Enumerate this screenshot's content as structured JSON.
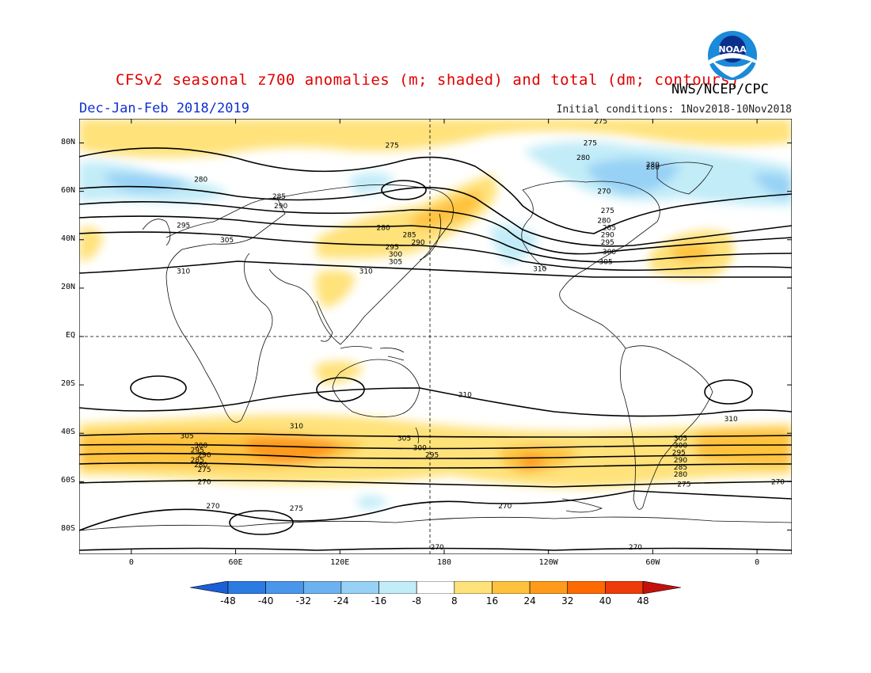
{
  "header": {
    "title": "CFSv2 seasonal z700 anomalies (m; shaded) and total (dm; contours)",
    "agency": "NWS/NCEP/CPC",
    "period": "Dec-Jan-Feb 2018/2019",
    "initial_conditions": "Initial conditions: 1Nov2018-10Nov2018"
  },
  "logo": {
    "text": "NOAA",
    "icon": "noaa-logo"
  },
  "axes": {
    "lat_ticks": [
      "80N",
      "60N",
      "40N",
      "20N",
      "EQ",
      "20S",
      "40S",
      "60S",
      "80S"
    ],
    "lat_values": [
      80,
      60,
      40,
      20,
      0,
      -20,
      -40,
      -60,
      -80
    ],
    "lon_ticks": [
      "0",
      "60E",
      "120E",
      "180",
      "120W",
      "60W",
      "0"
    ],
    "lon_values": [
      0,
      60,
      120,
      180,
      240,
      300,
      360
    ],
    "lat_range": [
      -90,
      90
    ],
    "lon_range": [
      -30,
      380
    ]
  },
  "colorbar": {
    "labels": [
      "-48",
      "-40",
      "-32",
      "-24",
      "-16",
      "-8",
      "8",
      "16",
      "24",
      "32",
      "40",
      "48"
    ],
    "colors": [
      "#1a5fd6",
      "#2b7be3",
      "#4a96ea",
      "#6cb2f0",
      "#97d1f5",
      "#c2ecf8",
      "#ffffff",
      "#ffe27a",
      "#ffc23d",
      "#ff9a1a",
      "#ff6a00",
      "#ee3b0a",
      "#c4100a"
    ]
  },
  "chart_data": {
    "type": "heatmap",
    "title": "CFSv2 seasonal z700 anomalies (m; shaded) and total (dm; contours)",
    "xlabel": "",
    "ylabel": "",
    "contour_labels": [
      {
        "lon": 270,
        "lat": 89,
        "text": "275"
      },
      {
        "lon": 300,
        "lat": 71,
        "text": "280"
      },
      {
        "lon": 150,
        "lat": 79,
        "text": "275"
      },
      {
        "lon": 300,
        "lat": 70,
        "text": "280"
      },
      {
        "lon": 260,
        "lat": 74,
        "text": "280"
      },
      {
        "lon": 264,
        "lat": 80,
        "text": "275"
      },
      {
        "lon": 40,
        "lat": 65,
        "text": "280"
      },
      {
        "lon": 85,
        "lat": 58,
        "text": "285"
      },
      {
        "lon": 86,
        "lat": 54,
        "text": "290"
      },
      {
        "lon": 30,
        "lat": 46,
        "text": "295"
      },
      {
        "lon": 55,
        "lat": 40,
        "text": "305"
      },
      {
        "lon": 30,
        "lat": 27,
        "text": "310"
      },
      {
        "lon": 145,
        "lat": 45,
        "text": "280"
      },
      {
        "lon": 160,
        "lat": 42,
        "text": "285"
      },
      {
        "lon": 165,
        "lat": 39,
        "text": "290"
      },
      {
        "lon": 150,
        "lat": 37,
        "text": "295"
      },
      {
        "lon": 152,
        "lat": 34,
        "text": "300"
      },
      {
        "lon": 152,
        "lat": 31,
        "text": "305"
      },
      {
        "lon": 135,
        "lat": 27,
        "text": "310"
      },
      {
        "lon": 272,
        "lat": 60,
        "text": "270"
      },
      {
        "lon": 274,
        "lat": 52,
        "text": "275"
      },
      {
        "lon": 272,
        "lat": 48,
        "text": "280"
      },
      {
        "lon": 275,
        "lat": 45,
        "text": "285"
      },
      {
        "lon": 274,
        "lat": 42,
        "text": "290"
      },
      {
        "lon": 274,
        "lat": 39,
        "text": "295"
      },
      {
        "lon": 275,
        "lat": 35,
        "text": "300"
      },
      {
        "lon": 273,
        "lat": 31,
        "text": "305"
      },
      {
        "lon": 235,
        "lat": 28,
        "text": "310"
      },
      {
        "lon": 192,
        "lat": -24,
        "text": "310"
      },
      {
        "lon": 95,
        "lat": -37,
        "text": "310"
      },
      {
        "lon": 345,
        "lat": -34,
        "text": "310"
      },
      {
        "lon": 32,
        "lat": -41,
        "text": "305"
      },
      {
        "lon": 40,
        "lat": -45,
        "text": "300"
      },
      {
        "lon": 38,
        "lat": -47,
        "text": "295"
      },
      {
        "lon": 42,
        "lat": -49,
        "text": "290"
      },
      {
        "lon": 38,
        "lat": -51,
        "text": "285"
      },
      {
        "lon": 40,
        "lat": -53,
        "text": "280"
      },
      {
        "lon": 42,
        "lat": -55,
        "text": "275"
      },
      {
        "lon": 42,
        "lat": -60,
        "text": "270"
      },
      {
        "lon": 157,
        "lat": -42,
        "text": "305"
      },
      {
        "lon": 166,
        "lat": -46,
        "text": "300"
      },
      {
        "lon": 173,
        "lat": -49,
        "text": "295"
      },
      {
        "lon": 316,
        "lat": -42,
        "text": "305"
      },
      {
        "lon": 316,
        "lat": -45,
        "text": "300"
      },
      {
        "lon": 315,
        "lat": -48,
        "text": "295"
      },
      {
        "lon": 316,
        "lat": -51,
        "text": "290"
      },
      {
        "lon": 316,
        "lat": -54,
        "text": "285"
      },
      {
        "lon": 316,
        "lat": -57,
        "text": "280"
      },
      {
        "lon": 318,
        "lat": -61,
        "text": "275"
      },
      {
        "lon": 372,
        "lat": -60,
        "text": "270"
      },
      {
        "lon": 215,
        "lat": -70,
        "text": "270"
      },
      {
        "lon": 95,
        "lat": -71,
        "text": "275"
      },
      {
        "lon": 47,
        "lat": -70,
        "text": "270"
      },
      {
        "lon": 176,
        "lat": -87,
        "text": "270"
      },
      {
        "lon": 290,
        "lat": -87,
        "text": "270"
      }
    ],
    "shaded_anomalies": [
      {
        "lon": 120,
        "lat": -50,
        "value": 32
      },
      {
        "lon": 240,
        "lat": -54,
        "value": 32
      },
      {
        "lon": 205,
        "lat": 53,
        "value": 24
      },
      {
        "lon": 335,
        "lat": 37,
        "value": 24
      },
      {
        "lon": 40,
        "lat": 62,
        "value": -16
      },
      {
        "lon": 310,
        "lat": 60,
        "value": -16
      }
    ]
  }
}
